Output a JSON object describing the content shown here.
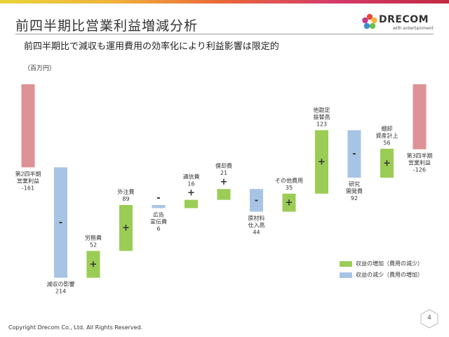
{
  "title": "前四半期比営業利益増減分析",
  "subtitle": "前四半期比で減収も運用費用の効率化により利益影響は限定的",
  "unit": "（百万円）",
  "logo": {
    "word": "DRECOM",
    "tagline": "with entertainment"
  },
  "footer": "Copyright Drecom Co., Ltd. All Rights Reserved.",
  "page_number": "4",
  "colors": {
    "total": "#dd9296",
    "decrease": "#a8c4e4",
    "increase": "#9bcc55"
  },
  "legend": [
    {
      "label": "収益の増加（費用の減少）",
      "kind": "increase"
    },
    {
      "label": "収益の減少（費用の増加）",
      "kind": "decrease"
    }
  ],
  "chart_data": {
    "type": "bar",
    "subtype": "waterfall",
    "title": "",
    "xlabel": "",
    "ylabel": "",
    "items": [
      {
        "label": [
          "第2四半期",
          "営業利益"
        ],
        "value_text": "-161",
        "start": 0,
        "end": -161,
        "kind": "total",
        "sign": ""
      },
      {
        "label": [
          "減収の影響"
        ],
        "value_text": "214",
        "start": -161,
        "end": -375,
        "kind": "decrease",
        "sign": "-"
      },
      {
        "label": [
          "労務費"
        ],
        "value_text": "52",
        "start": -375,
        "end": -323,
        "kind": "increase",
        "sign": "+"
      },
      {
        "label": [
          "外注費"
        ],
        "value_text": "89",
        "start": -323,
        "end": -234,
        "kind": "increase",
        "sign": "+"
      },
      {
        "label": [
          "広告",
          "宣伝費"
        ],
        "value_text": "6",
        "start": -234,
        "end": -240,
        "kind": "decrease",
        "sign": "-"
      },
      {
        "label": [
          "通信費"
        ],
        "value_text": "16",
        "start": -240,
        "end": -224,
        "kind": "increase",
        "sign": "+"
      },
      {
        "label": [
          "償却費"
        ],
        "value_text": "21",
        "start": -224,
        "end": -203,
        "kind": "increase",
        "sign": "+"
      },
      {
        "label": [
          "原材料",
          "仕入高"
        ],
        "value_text": "44",
        "start": -203,
        "end": -247,
        "kind": "decrease",
        "sign": "-"
      },
      {
        "label": [
          "その他費用"
        ],
        "value_text": "35",
        "start": -247,
        "end": -212,
        "kind": "increase",
        "sign": "+"
      },
      {
        "label": [
          "他勘定",
          "振替高"
        ],
        "value_text": "123",
        "start": -212,
        "end": -89,
        "kind": "increase",
        "sign": "+"
      },
      {
        "label": [
          "研究",
          "開発費"
        ],
        "value_text": "92",
        "start": -89,
        "end": -181,
        "kind": "decrease",
        "sign": "-"
      },
      {
        "label": [
          "棚卸",
          "資産計上"
        ],
        "value_text": "56",
        "start": -181,
        "end": -125,
        "kind": "increase",
        "sign": "+"
      },
      {
        "label": [
          "第3四半期",
          "営業利益"
        ],
        "value_text": "-126",
        "start": 0,
        "end": -126,
        "kind": "total",
        "sign": ""
      }
    ]
  }
}
